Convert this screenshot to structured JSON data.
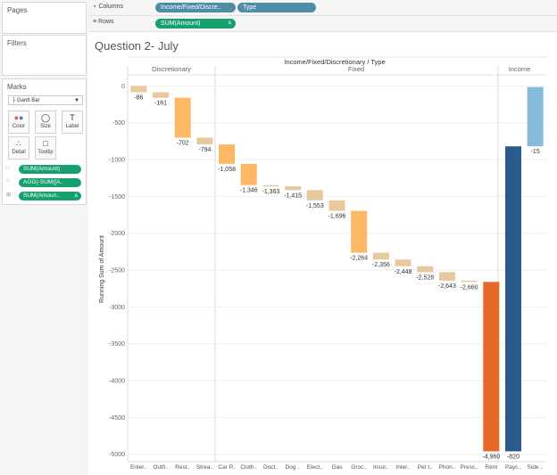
{
  "left_panel": {
    "pages_label": "Pages",
    "filters_label": "Filters",
    "marks": {
      "label": "Marks",
      "mark_type": "Gantt Bar",
      "buttons": [
        "Color",
        "Size",
        "Label",
        "Detail",
        "Tooltip"
      ],
      "pills": [
        "SUM(Amount)",
        "AGG(-SUM([A..",
        "SUM(Amoun.."
      ]
    }
  },
  "shelves": {
    "columns_label": "Columns",
    "columns_pills": [
      "Income/Fixed/Discre..",
      "Type"
    ],
    "rows_label": "Rows",
    "rows_pills": [
      "SUM(Amount)"
    ]
  },
  "viz": {
    "title": "Question 2- July",
    "header_title": "Income/Fixed/Discretionary / Type",
    "groups": [
      "Discretionary",
      "Fixed",
      "Income"
    ],
    "y_axis_label": "Running Sum of Amount"
  },
  "colors": {
    "tan": "#e8c99e",
    "orange_light": "#fdb863",
    "orange_dark": "#e8682a",
    "navy": "#2b5b8a",
    "light_blue": "#86bcdb",
    "pill_green": "#15a06e",
    "pill_blue": "#4e8ca8"
  },
  "chart_data": {
    "type": "bar",
    "subtype": "waterfall-gantt",
    "categories": [
      "Enter..",
      "Outfi..",
      "Rest..",
      "Strea..",
      "Car P..",
      "Cloth..",
      "Doct..",
      "Dog ..",
      "Elect..",
      "Gas",
      "Groc..",
      "Insur..",
      "Inter..",
      "Pet t..",
      "Phon..",
      "Presc..",
      "Rent",
      "Payc..",
      "Side .."
    ],
    "groups": [
      "Discretionary",
      "Discretionary",
      "Discretionary",
      "Discretionary",
      "Fixed",
      "Fixed",
      "Fixed",
      "Fixed",
      "Fixed",
      "Fixed",
      "Fixed",
      "Fixed",
      "Fixed",
      "Fixed",
      "Fixed",
      "Fixed",
      "Fixed",
      "Income",
      "Income"
    ],
    "start": [
      0,
      -86,
      -161,
      -702,
      -794,
      -1058,
      -1346,
      -1363,
      -1415,
      -1553,
      -1696,
      -2264,
      -2356,
      -2448,
      -2528,
      -2643,
      -2660,
      -4960,
      -820
    ],
    "end": [
      -86,
      -161,
      -702,
      -794,
      -1058,
      -1346,
      -1363,
      -1415,
      -1553,
      -1696,
      -2264,
      -2356,
      -2448,
      -2528,
      -2643,
      -2660,
      -4960,
      -820,
      -15
    ],
    "labels": [
      "-86",
      "-161",
      "-702",
      "-794",
      "-1,058",
      "-1,346",
      "-1,363",
      "-1,415",
      "-1,553",
      "-1,696",
      "-2,264",
      "-2,356",
      "-2,448",
      "-2,528",
      "-2,643",
      "-2,660",
      "-4,960",
      "-820",
      "-15"
    ],
    "colors": [
      "tan",
      "tan",
      "orange_light",
      "tan",
      "orange_light",
      "orange_light",
      "tan",
      "tan",
      "tan",
      "tan",
      "orange_light",
      "tan",
      "tan",
      "tan",
      "tan",
      "tan",
      "orange_dark",
      "navy",
      "light_blue"
    ],
    "ylim": [
      -5100,
      150
    ],
    "yticks": [
      0,
      -500,
      -1000,
      -1500,
      -2000,
      -2500,
      -3000,
      -3500,
      -4000,
      -4500,
      -5000
    ],
    "ytick_labels": [
      "0",
      "-500",
      "-1000",
      "-1500",
      "-2000",
      "-2500",
      "-3000",
      "-3500",
      "-4000",
      "-4500",
      "-5000"
    ],
    "ylabel": "Running Sum of Amount",
    "grid": true
  }
}
